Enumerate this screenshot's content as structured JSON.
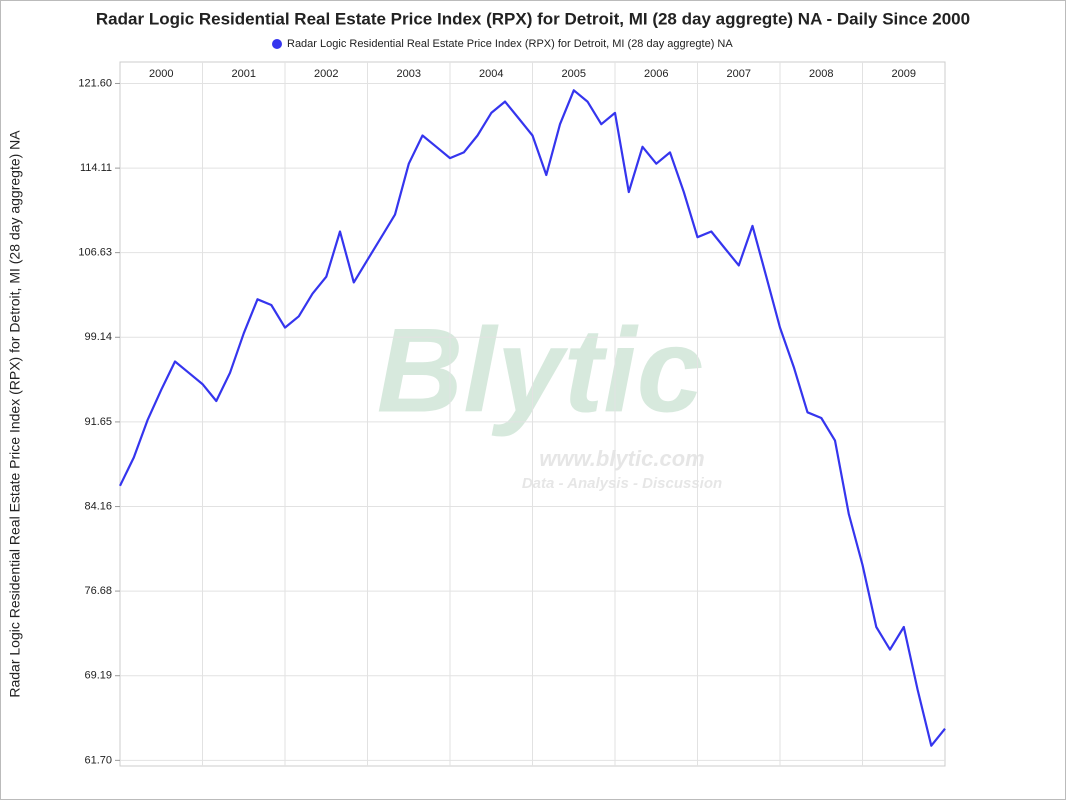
{
  "chart_data": {
    "type": "line",
    "title": "Radar Logic Residential Real Estate Price Index (RPX) for Detroit, MI (28 day aggregte) NA - Daily Since 2000",
    "y_label": "Radar Logic Residential Real Estate Price Index (RPX) for Detroit, MI (28 day aggregte) NA",
    "watermark": {
      "brand": "Blytic",
      "url": "www.blytic.com",
      "tagline": "Data - Analysis - Discussion"
    },
    "categories": [
      "2000",
      null,
      null,
      null,
      null,
      null,
      "2001",
      null,
      null,
      null,
      null,
      null,
      "2002",
      null,
      null,
      null,
      null,
      null,
      "2003",
      null,
      null,
      null,
      null,
      null,
      "2004",
      null,
      null,
      null,
      null,
      null,
      "2005",
      null,
      null,
      null,
      null,
      null,
      "2006",
      null,
      null,
      null,
      null,
      null,
      "2007",
      null,
      null,
      null,
      null,
      null,
      "2008",
      null,
      null,
      null,
      null,
      null,
      "2009",
      null,
      null,
      null,
      null,
      null,
      null
    ],
    "series": [
      {
        "name": "Radar Logic Residential Real Estate Price Index (RPX) for Detroit, MI (28 day aggregte) NA",
        "color": "#3535ee",
        "values": [
          86.0,
          88.5,
          91.8,
          94.5,
          97.0,
          96.0,
          95.0,
          93.5,
          96.0,
          99.5,
          102.5,
          102.0,
          100.0,
          101.0,
          103.0,
          104.5,
          108.5,
          104.0,
          106.0,
          108.0,
          110.0,
          114.5,
          117.0,
          116.0,
          115.0,
          115.5,
          117.0,
          119.0,
          120.0,
          118.5,
          117.0,
          113.5,
          118.0,
          121.0,
          120.0,
          118.0,
          119.0,
          112.0,
          116.0,
          114.5,
          115.5,
          112.0,
          108.0,
          108.5,
          107.0,
          105.5,
          109.0,
          104.5,
          100.0,
          96.5,
          92.5,
          92.0,
          90.0,
          83.5,
          79.0,
          73.5,
          71.5,
          73.5,
          68.0,
          63.0,
          64.5
        ]
      }
    ],
    "ylim": [
      61.2,
      123.5
    ],
    "yticks": [
      {
        "value": 61.7,
        "label": "61.70"
      },
      69.19,
      76.68,
      84.16,
      91.65,
      99.14,
      106.63,
      114.11,
      {
        "value": 121.6,
        "label": "121.60"
      }
    ],
    "grid": true
  }
}
